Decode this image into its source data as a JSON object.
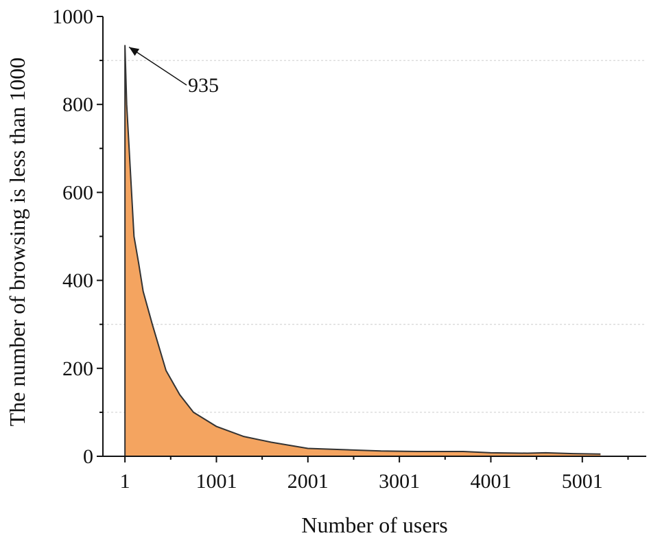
{
  "chart_data": {
    "type": "area",
    "xlabel": "Number of users",
    "ylabel": "The number of browsing is less than 1000",
    "xlim": [
      -240,
      5700
    ],
    "ylim": [
      0,
      1000
    ],
    "x_ticks": [
      1,
      1001,
      2001,
      3001,
      4001,
      5001
    ],
    "x_tick_labels": [
      "1",
      "1001",
      "2001",
      "3001",
      "4001",
      "5001"
    ],
    "y_ticks": [
      0,
      200,
      400,
      600,
      800,
      1000
    ],
    "y_tick_labels": [
      "0",
      "200",
      "400",
      "600",
      "800",
      "1000"
    ],
    "grid": true,
    "grid_lines_y": [
      100,
      300,
      900
    ],
    "fill_color": "#F4A460",
    "line_color": "#333333",
    "series": [
      {
        "x": [
          1,
          20,
          60,
          100,
          150,
          200,
          300,
          450,
          600,
          750,
          1000,
          1300,
          1600,
          2000,
          2400,
          2800,
          3200,
          3700,
          4000,
          4400,
          4600,
          4900,
          5200
        ],
        "y": [
          935,
          800,
          650,
          500,
          440,
          375,
          300,
          195,
          140,
          100,
          68,
          45,
          32,
          18,
          15,
          12,
          11,
          11,
          8,
          7,
          8,
          6,
          5
        ]
      }
    ],
    "annotations": [
      {
        "text": "935",
        "x": 1,
        "y": 935
      }
    ]
  }
}
